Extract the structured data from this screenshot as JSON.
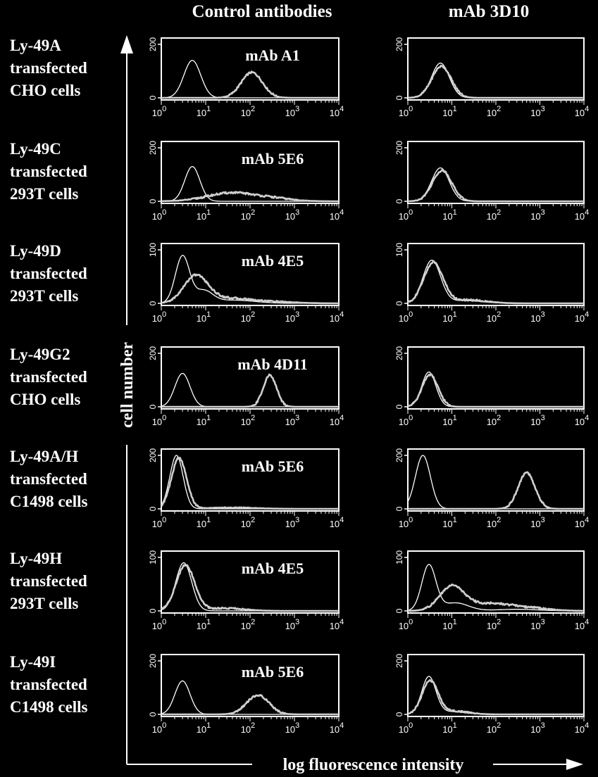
{
  "chart_data": {
    "type": "line",
    "x_scale": "log",
    "ylabel": "cell number",
    "xlabel": "log fluorescence intensity",
    "column_titles": [
      "Control antibodies",
      "mAb 3D10"
    ],
    "x_tick_labels": [
      "10",
      "10",
      "10",
      "10",
      "10"
    ],
    "x_tick_exponents": [
      "0",
      "1",
      "2",
      "3",
      "4"
    ],
    "xlim": [
      1,
      10000
    ],
    "rows": [
      {
        "label": [
          "Ly-49A",
          "transfected",
          "CHO cells"
        ],
        "ymax": 200,
        "ytick_labels": [
          "0",
          "200"
        ],
        "control": {
          "antibody": "mAb A1",
          "series": [
            {
              "role": "negative",
              "peaks": [
                {
                  "x": 5,
                  "height": 140,
                  "width": 0.19
                }
              ]
            },
            {
              "role": "stained",
              "peaks": [
                {
                  "x": 110,
                  "height": 95,
                  "width": 0.24
                }
              ]
            }
          ]
        },
        "mab3d10": {
          "series": [
            {
              "role": "negative",
              "peaks": [
                {
                  "x": 5.5,
                  "height": 130,
                  "width": 0.2
                }
              ]
            },
            {
              "role": "stained",
              "peaks": [
                {
                  "x": 5.8,
                  "height": 118,
                  "width": 0.22
                }
              ]
            }
          ]
        }
      },
      {
        "label": [
          "Ly-49C",
          "transfected",
          "293T cells"
        ],
        "ymax": 200,
        "ytick_labels": [
          "0",
          "200"
        ],
        "control": {
          "antibody": "mAb 5E6",
          "series": [
            {
              "role": "negative",
              "peaks": [
                {
                  "x": 5,
                  "height": 130,
                  "width": 0.17
                }
              ]
            },
            {
              "role": "stained",
              "peaks": [
                {
                  "x": 40,
                  "height": 32,
                  "width": 0.55
                },
                {
                  "x": 400,
                  "height": 8,
                  "width": 0.4
                }
              ]
            }
          ]
        },
        "mab3d10": {
          "series": [
            {
              "role": "negative",
              "peaks": [
                {
                  "x": 5.5,
                  "height": 125,
                  "width": 0.2
                }
              ]
            },
            {
              "role": "stained",
              "peaks": [
                {
                  "x": 6,
                  "height": 115,
                  "width": 0.22
                }
              ]
            }
          ]
        }
      },
      {
        "label": [
          "Ly-49D",
          "transfected",
          "293T cells"
        ],
        "ymax": 100,
        "ytick_labels": [
          "0",
          "100"
        ],
        "control": {
          "antibody": "mAb 4E5",
          "series": [
            {
              "role": "negative",
              "peaks": [
                {
                  "x": 3,
                  "height": 88,
                  "width": 0.16
                },
                {
                  "x": 9,
                  "height": 22,
                  "width": 0.2
                },
                {
                  "x": 40,
                  "height": 6,
                  "width": 0.5
                }
              ]
            },
            {
              "role": "stained",
              "peaks": [
                {
                  "x": 6,
                  "height": 50,
                  "width": 0.27
                },
                {
                  "x": 30,
                  "height": 9,
                  "width": 0.5
                },
                {
                  "x": 300,
                  "height": 3,
                  "width": 0.5
                }
              ]
            }
          ]
        },
        "mab3d10": {
          "series": [
            {
              "role": "negative",
              "peaks": [
                {
                  "x": 3.5,
                  "height": 80,
                  "width": 0.2
                },
                {
                  "x": 20,
                  "height": 5,
                  "width": 0.4
                }
              ]
            },
            {
              "role": "stained",
              "peaks": [
                {
                  "x": 3.8,
                  "height": 76,
                  "width": 0.22
                },
                {
                  "x": 25,
                  "height": 6,
                  "width": 0.4
                }
              ]
            }
          ]
        }
      },
      {
        "label": [
          "Ly-49G2",
          "transfected",
          "CHO cells"
        ],
        "ymax": 200,
        "ytick_labels": [
          "0",
          "200"
        ],
        "control": {
          "antibody": "mAb 4D11",
          "series": [
            {
              "role": "negative",
              "peaks": [
                {
                  "x": 3,
                  "height": 125,
                  "width": 0.17
                }
              ]
            },
            {
              "role": "stained",
              "peaks": [
                {
                  "x": 280,
                  "height": 118,
                  "width": 0.15
                }
              ]
            }
          ]
        },
        "mab3d10": {
          "series": [
            {
              "role": "negative",
              "peaks": [
                {
                  "x": 3,
                  "height": 130,
                  "width": 0.16
                }
              ]
            },
            {
              "role": "stained",
              "peaks": [
                {
                  "x": 3.2,
                  "height": 120,
                  "width": 0.18
                }
              ]
            }
          ]
        }
      },
      {
        "label": [
          "Ly-49A/H",
          "transfected",
          "C1498 cells"
        ],
        "ymax": 200,
        "ytick_labels": [
          "0",
          "200"
        ],
        "control": {
          "antibody": "mAb 5E6",
          "series": [
            {
              "role": "negative",
              "peaks": [
                {
                  "x": 2.2,
                  "height": 200,
                  "width": 0.15
                }
              ]
            },
            {
              "role": "stained",
              "peaks": [
                {
                  "x": 2.5,
                  "height": 190,
                  "width": 0.17
                },
                {
                  "x": 40,
                  "height": 5,
                  "width": 0.5
                }
              ]
            }
          ]
        },
        "mab3d10": {
          "series": [
            {
              "role": "negative",
              "peaks": [
                {
                  "x": 2.2,
                  "height": 200,
                  "width": 0.17
                }
              ]
            },
            {
              "role": "stained",
              "peaks": [
                {
                  "x": 500,
                  "height": 135,
                  "width": 0.19
                }
              ]
            }
          ]
        }
      },
      {
        "label": [
          "Ly-49H",
          "transfected",
          "293T cells"
        ],
        "ymax": 100,
        "ytick_labels": [
          "0",
          "100"
        ],
        "control": {
          "antibody": "mAb 4E5",
          "series": [
            {
              "role": "negative",
              "peaks": [
                {
                  "x": 3.2,
                  "height": 90,
                  "width": 0.18
                }
              ]
            },
            {
              "role": "stained",
              "peaks": [
                {
                  "x": 3.5,
                  "height": 85,
                  "width": 0.21
                },
                {
                  "x": 30,
                  "height": 5,
                  "width": 0.4
                }
              ]
            }
          ]
        },
        "mab3d10": {
          "series": [
            {
              "role": "negative",
              "peaks": [
                {
                  "x": 3,
                  "height": 85,
                  "width": 0.16
                },
                {
                  "x": 12,
                  "height": 15,
                  "width": 0.3
                },
                {
                  "x": 300,
                  "height": 3,
                  "width": 0.5
                }
              ]
            },
            {
              "role": "stained",
              "peaks": [
                {
                  "x": 10,
                  "height": 45,
                  "width": 0.28
                },
                {
                  "x": 80,
                  "height": 14,
                  "width": 0.5
                },
                {
                  "x": 800,
                  "height": 4,
                  "width": 0.4
                }
              ]
            }
          ]
        }
      },
      {
        "label": [
          "Ly-49I",
          "transfected",
          "C1498 cells"
        ],
        "ymax": 200,
        "ytick_labels": [
          "0",
          "200"
        ],
        "control": {
          "antibody": "mAb 5E6",
          "series": [
            {
              "role": "negative",
              "peaks": [
                {
                  "x": 3,
                  "height": 125,
                  "width": 0.17
                }
              ]
            },
            {
              "role": "stained",
              "peaks": [
                {
                  "x": 150,
                  "height": 72,
                  "width": 0.25
                }
              ]
            }
          ]
        },
        "mab3d10": {
          "series": [
            {
              "role": "negative",
              "peaks": [
                {
                  "x": 3,
                  "height": 140,
                  "width": 0.16
                },
                {
                  "x": 10,
                  "height": 10,
                  "width": 0.3
                }
              ]
            },
            {
              "role": "stained",
              "peaks": [
                {
                  "x": 3.2,
                  "height": 125,
                  "width": 0.18
                },
                {
                  "x": 12,
                  "height": 12,
                  "width": 0.3
                }
              ]
            }
          ]
        }
      }
    ]
  },
  "colors": {
    "background": "#000000",
    "foreground": "#ffffff",
    "negative_line": "#ffffff",
    "stained_line": "#cfcfcf"
  }
}
